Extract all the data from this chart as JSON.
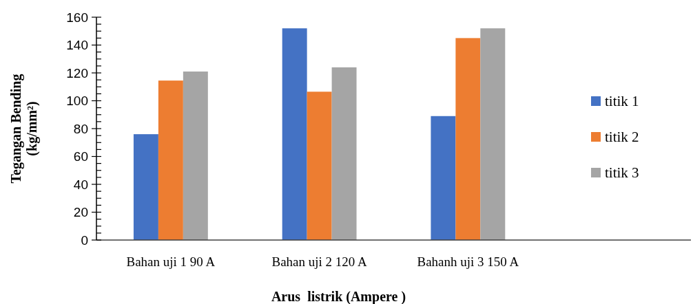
{
  "chart_data": {
    "type": "bar",
    "xlabel": "Arus  listrik (Ampere )",
    "ylabel": "Tegangan Bending\n(kg/mm²)",
    "categories": [
      "Bahan uji 1 90 A",
      "Bahan uji 2 120 A",
      "Bahanh uji 3 150 A",
      null
    ],
    "series": [
      {
        "name": "titik 1",
        "color": "#4472c4",
        "values": [
          76,
          152,
          89,
          null
        ]
      },
      {
        "name": "titik 2",
        "color": "#ed7d31",
        "values": [
          114.5,
          106.5,
          145,
          null
        ]
      },
      {
        "name": "titik 3",
        "color": "#a5a5a5",
        "values": [
          121,
          124,
          152,
          null
        ]
      }
    ],
    "ylim": [
      0,
      160
    ],
    "yticks": [
      0,
      {
        "value": 5,
        "label": null
      },
      {
        "value": 10,
        "label": null
      },
      {
        "value": 15,
        "label": null
      },
      20,
      {
        "value": 25,
        "label": null
      },
      {
        "value": 30,
        "label": null
      },
      {
        "value": 35,
        "label": null
      },
      40,
      {
        "value": 45,
        "label": null
      },
      {
        "value": 50,
        "label": null
      },
      {
        "value": 55,
        "label": null
      },
      60,
      {
        "value": 65,
        "label": null
      },
      {
        "value": 70,
        "label": null
      },
      {
        "value": 75,
        "label": null
      },
      80,
      {
        "value": 85,
        "label": null
      },
      {
        "value": 90,
        "label": null
      },
      {
        "value": 95,
        "label": null
      },
      100,
      {
        "value": 105,
        "label": null
      },
      {
        "value": 110,
        "label": null
      },
      {
        "value": 115,
        "label": null
      },
      120,
      {
        "value": 125,
        "label": null
      },
      {
        "value": 130,
        "label": null
      },
      {
        "value": 135,
        "label": null
      },
      140,
      {
        "value": 145,
        "label": null
      },
      {
        "value": 150,
        "label": null
      },
      {
        "value": 155,
        "label": null
      },
      160
    ],
    "legend": "right",
    "grid": false
  }
}
